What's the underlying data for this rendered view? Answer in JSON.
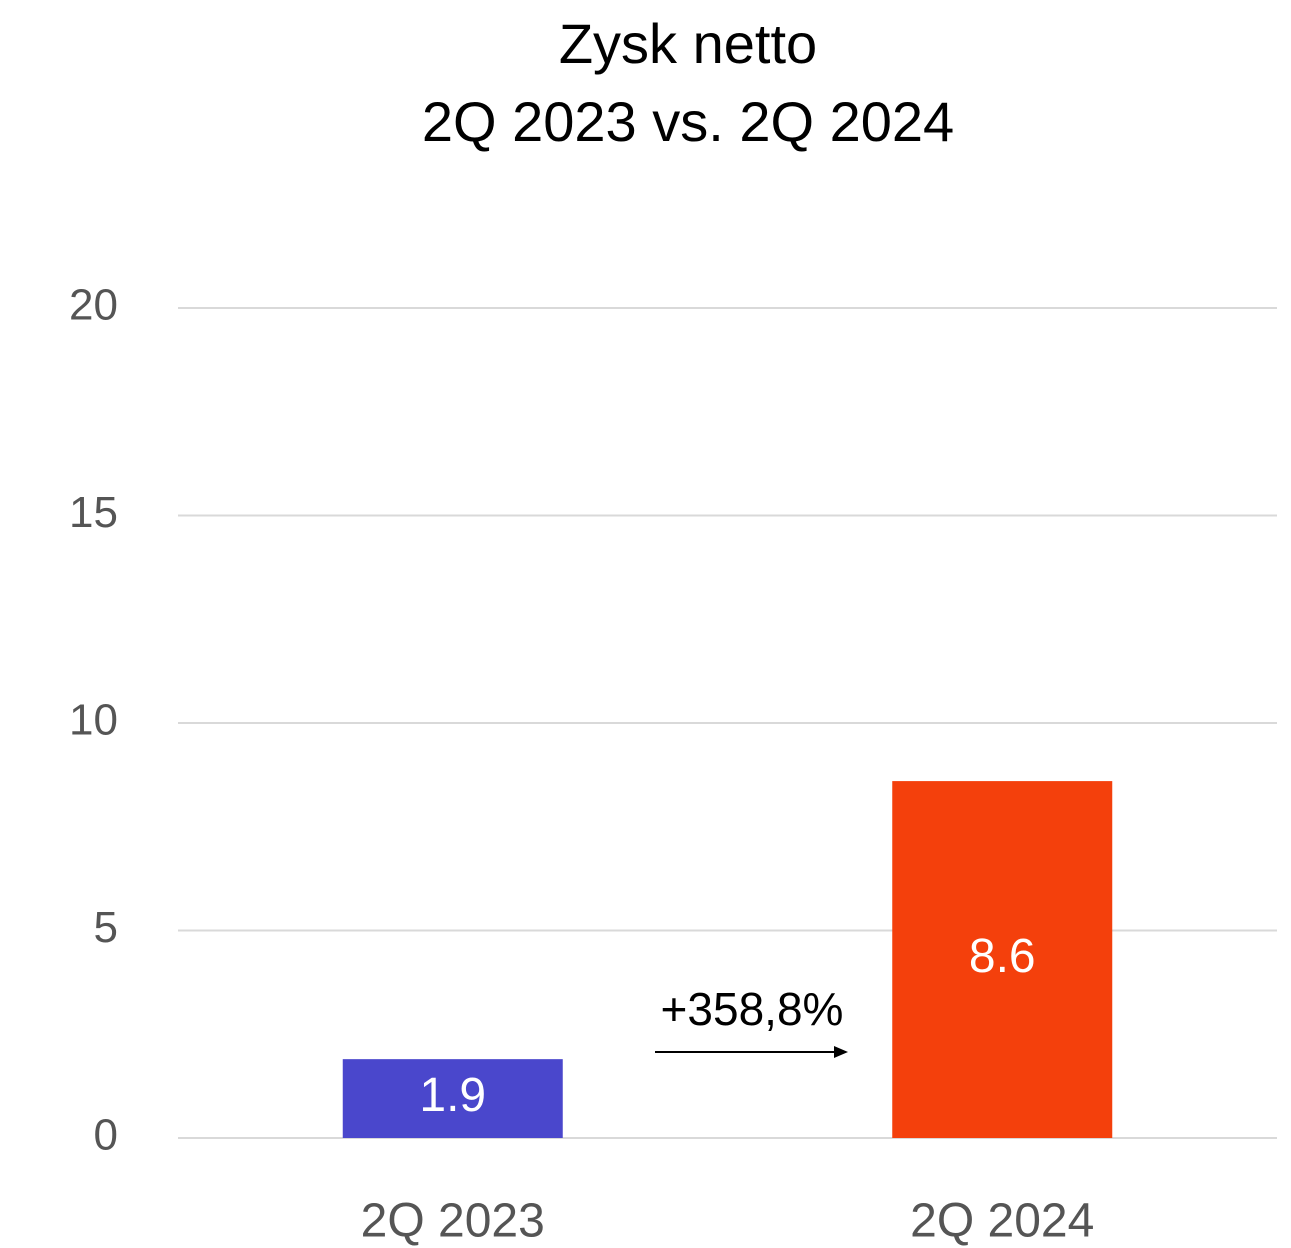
{
  "chart_data": {
    "type": "bar",
    "title": "Zysk netto",
    "subtitle": "2Q 2023 vs. 2Q 2024",
    "categories": [
      "2Q 2023",
      "2Q 2024"
    ],
    "values": [
      1.9,
      8.6
    ],
    "colors": [
      "#4a47cc",
      "#f4400c"
    ],
    "ylim": [
      0,
      20
    ],
    "yticks": [
      0,
      5,
      10,
      15,
      20
    ],
    "grid": true,
    "annotation": "+358,8%"
  }
}
